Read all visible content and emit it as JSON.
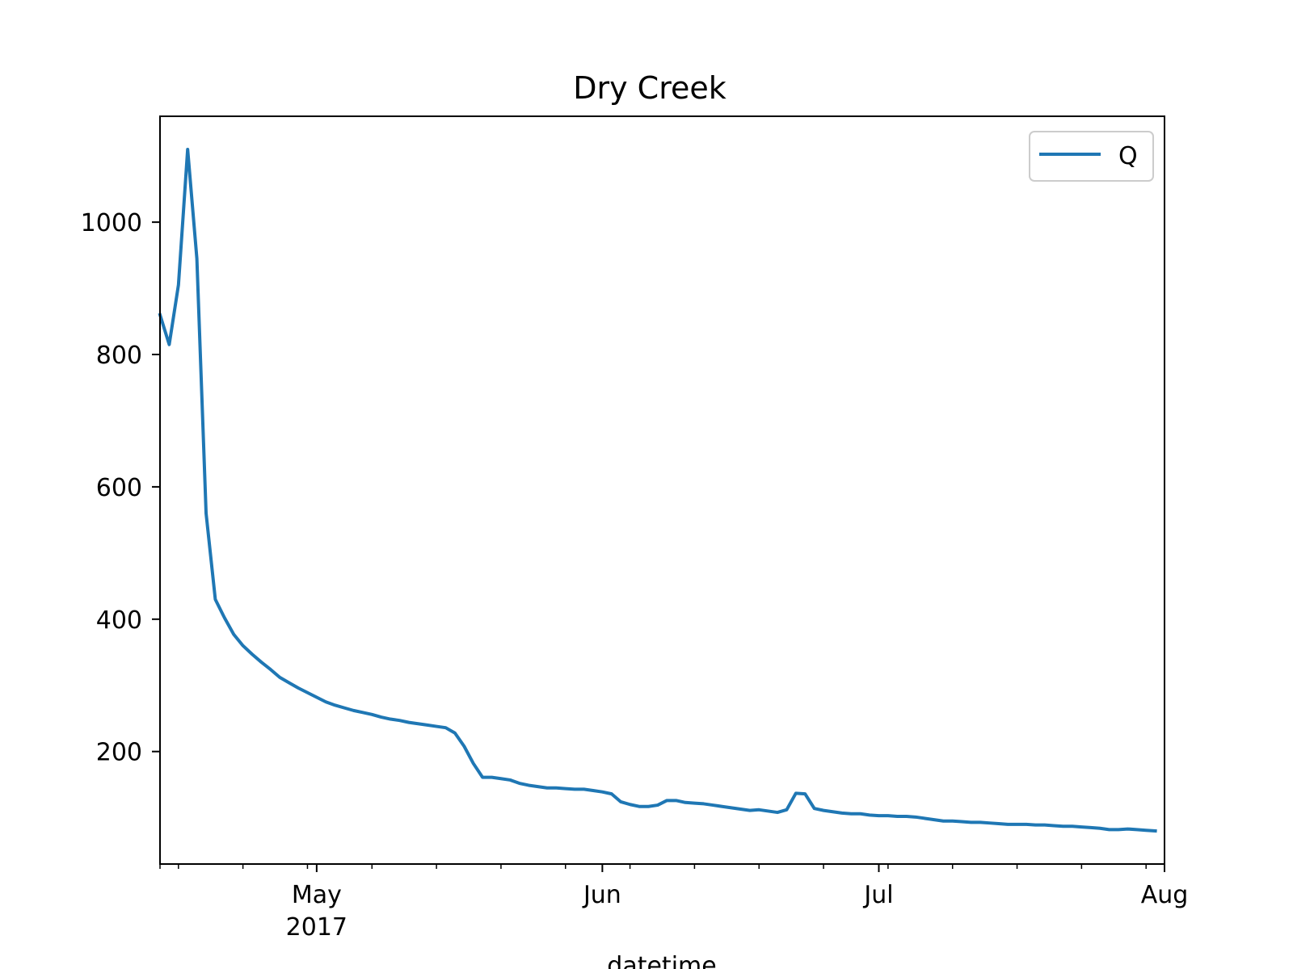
{
  "chart_data": {
    "type": "line",
    "title": "Dry Creek",
    "xlabel": "datetime",
    "ylabel": "",
    "x_range": [
      "2017-04-14",
      "2017-08-01"
    ],
    "y_range": [
      30,
      1160
    ],
    "y_ticks": [
      200,
      400,
      600,
      800,
      1000
    ],
    "x_major_ticks": [
      {
        "date": "2017-05-01",
        "label": "May",
        "sublabel": "2017"
      },
      {
        "date": "2017-06-01",
        "label": "Jun",
        "sublabel": ""
      },
      {
        "date": "2017-07-01",
        "label": "Jul",
        "sublabel": ""
      },
      {
        "date": "2017-08-01",
        "label": "Aug",
        "sublabel": ""
      }
    ],
    "x_minor_ticks": [
      "2017-04-14",
      "2017-04-16",
      "2017-04-23",
      "2017-04-30",
      "2017-05-07",
      "2017-05-14",
      "2017-05-21",
      "2017-05-28",
      "2017-06-04",
      "2017-06-11",
      "2017-06-18",
      "2017-06-25",
      "2017-07-02",
      "2017-07-09",
      "2017-07-16",
      "2017-07-23",
      "2017-07-30"
    ],
    "legend": {
      "position": "top-right",
      "entries": [
        "Q"
      ]
    },
    "grid": false,
    "series": [
      {
        "name": "Q",
        "color": "#1f77b4",
        "points": [
          [
            "2017-04-14",
            860
          ],
          [
            "2017-04-15",
            815
          ],
          [
            "2017-04-16",
            905
          ],
          [
            "2017-04-17",
            1110
          ],
          [
            "2017-04-18",
            945
          ],
          [
            "2017-04-19",
            560
          ],
          [
            "2017-04-20",
            430
          ],
          [
            "2017-04-21",
            402
          ],
          [
            "2017-04-22",
            377
          ],
          [
            "2017-04-23",
            360
          ],
          [
            "2017-04-24",
            347
          ],
          [
            "2017-04-25",
            335
          ],
          [
            "2017-04-26",
            324
          ],
          [
            "2017-04-27",
            312
          ],
          [
            "2017-04-28",
            304
          ],
          [
            "2017-04-29",
            296
          ],
          [
            "2017-04-30",
            289
          ],
          [
            "2017-05-01",
            282
          ],
          [
            "2017-05-02",
            275
          ],
          [
            "2017-05-03",
            270
          ],
          [
            "2017-05-04",
            266
          ],
          [
            "2017-05-05",
            262
          ],
          [
            "2017-05-06",
            259
          ],
          [
            "2017-05-07",
            256
          ],
          [
            "2017-05-08",
            252
          ],
          [
            "2017-05-09",
            249
          ],
          [
            "2017-05-10",
            247
          ],
          [
            "2017-05-11",
            244
          ],
          [
            "2017-05-12",
            242
          ],
          [
            "2017-05-13",
            240
          ],
          [
            "2017-05-14",
            238
          ],
          [
            "2017-05-15",
            236
          ],
          [
            "2017-05-16",
            228
          ],
          [
            "2017-05-17",
            208
          ],
          [
            "2017-05-18",
            182
          ],
          [
            "2017-05-19",
            161
          ],
          [
            "2017-05-20",
            161
          ],
          [
            "2017-05-21",
            159
          ],
          [
            "2017-05-22",
            157
          ],
          [
            "2017-05-23",
            152
          ],
          [
            "2017-05-24",
            149
          ],
          [
            "2017-05-25",
            147
          ],
          [
            "2017-05-26",
            145
          ],
          [
            "2017-05-27",
            145
          ],
          [
            "2017-05-28",
            144
          ],
          [
            "2017-05-29",
            143
          ],
          [
            "2017-05-30",
            143
          ],
          [
            "2017-05-31",
            141
          ],
          [
            "2017-06-01",
            139
          ],
          [
            "2017-06-02",
            136
          ],
          [
            "2017-06-03",
            124
          ],
          [
            "2017-06-04",
            120
          ],
          [
            "2017-06-05",
            117
          ],
          [
            "2017-06-06",
            117
          ],
          [
            "2017-06-07",
            119
          ],
          [
            "2017-06-08",
            126
          ],
          [
            "2017-06-09",
            126
          ],
          [
            "2017-06-10",
            123
          ],
          [
            "2017-06-11",
            122
          ],
          [
            "2017-06-12",
            121
          ],
          [
            "2017-06-13",
            119
          ],
          [
            "2017-06-14",
            117
          ],
          [
            "2017-06-15",
            115
          ],
          [
            "2017-06-16",
            113
          ],
          [
            "2017-06-17",
            111
          ],
          [
            "2017-06-18",
            112
          ],
          [
            "2017-06-19",
            110
          ],
          [
            "2017-06-20",
            108
          ],
          [
            "2017-06-21",
            112
          ],
          [
            "2017-06-22",
            137
          ],
          [
            "2017-06-23",
            136
          ],
          [
            "2017-06-24",
            114
          ],
          [
            "2017-06-25",
            111
          ],
          [
            "2017-06-26",
            109
          ],
          [
            "2017-06-27",
            107
          ],
          [
            "2017-06-28",
            106
          ],
          [
            "2017-06-29",
            106
          ],
          [
            "2017-06-30",
            104
          ],
          [
            "2017-07-01",
            103
          ],
          [
            "2017-07-02",
            103
          ],
          [
            "2017-07-03",
            102
          ],
          [
            "2017-07-04",
            102
          ],
          [
            "2017-07-05",
            101
          ],
          [
            "2017-07-06",
            99
          ],
          [
            "2017-07-07",
            97
          ],
          [
            "2017-07-08",
            95
          ],
          [
            "2017-07-09",
            95
          ],
          [
            "2017-07-10",
            94
          ],
          [
            "2017-07-11",
            93
          ],
          [
            "2017-07-12",
            93
          ],
          [
            "2017-07-13",
            92
          ],
          [
            "2017-07-14",
            91
          ],
          [
            "2017-07-15",
            90
          ],
          [
            "2017-07-16",
            90
          ],
          [
            "2017-07-17",
            90
          ],
          [
            "2017-07-18",
            89
          ],
          [
            "2017-07-19",
            89
          ],
          [
            "2017-07-20",
            88
          ],
          [
            "2017-07-21",
            87
          ],
          [
            "2017-07-22",
            87
          ],
          [
            "2017-07-23",
            86
          ],
          [
            "2017-07-24",
            85
          ],
          [
            "2017-07-25",
            84
          ],
          [
            "2017-07-26",
            82
          ],
          [
            "2017-07-27",
            82
          ],
          [
            "2017-07-28",
            83
          ],
          [
            "2017-07-29",
            82
          ],
          [
            "2017-07-30",
            81
          ],
          [
            "2017-07-31",
            80
          ]
        ]
      }
    ]
  }
}
